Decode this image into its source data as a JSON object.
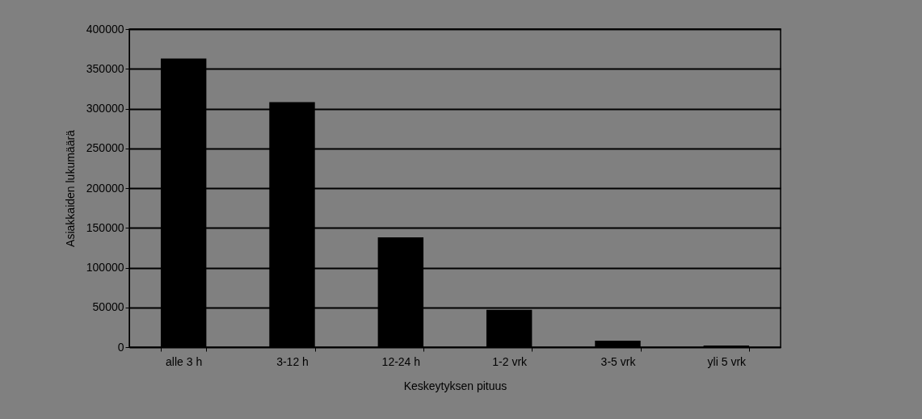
{
  "chart_data": {
    "type": "bar",
    "xlabel": "Keskeytyksen pituus",
    "ylabel": "Asiakkaiden lukumäärä",
    "categories": [
      "alle 3 h",
      "3-12 h",
      "12-24 h",
      "1-2 vrk",
      "3-5 vrk",
      "yli 5 vrk"
    ],
    "values": [
      363000,
      308000,
      138000,
      47000,
      8000,
      2000
    ],
    "color": "#000000",
    "ylim": [
      0,
      400000
    ],
    "yticks": [
      0,
      50000,
      100000,
      150000,
      200000,
      250000,
      300000,
      350000,
      400000
    ],
    "grid": "y"
  }
}
